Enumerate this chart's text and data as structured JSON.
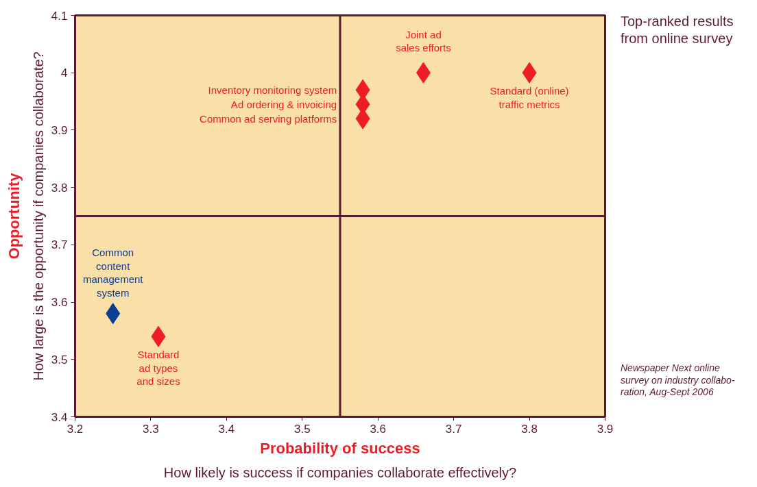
{
  "chart_data": {
    "type": "scatter",
    "title": "Top-ranked results\nfrom online survey",
    "xlabel": "Probability of success",
    "ylabel": "Opportunity",
    "series": [
      {
        "color": "#ee1c25",
        "x": [
          3.58,
          3.58,
          3.58,
          3.66,
          3.8,
          3.31
        ],
        "values": [
          3.97,
          3.945,
          3.92,
          4.0,
          4.0,
          3.54
        ]
      },
      {
        "color": "#0b3c96",
        "x": [
          3.25
        ],
        "values": [
          3.58
        ]
      }
    ],
    "marker": "diamond",
    "xlim": [
      3.2,
      3.9
    ],
    "ylim": [
      3.4,
      4.1
    ],
    "xticks": [
      3.2,
      3.3,
      3.4,
      3.5,
      3.6,
      3.7,
      3.8,
      3.9
    ],
    "yticks": [
      3.4,
      3.5,
      3.6,
      3.7,
      3.8,
      3.9,
      4,
      4.1
    ],
    "ref_lines": [
      {
        "axis": "x",
        "value": 3.55,
        "color": "#5c1a2e"
      },
      {
        "axis": "y",
        "value": 3.75,
        "color": "#5c1a2e"
      }
    ],
    "annotations": [
      {
        "text": "Inventory monitoring system",
        "x": 3.58,
        "y": 3.97
      },
      {
        "text": "Ad ordering & invoicing",
        "x": 3.58,
        "y": 3.945
      },
      {
        "text": "Common ad serving platforms",
        "x": 3.58,
        "y": 3.92
      },
      {
        "text": "Joint ad\nsales efforts",
        "x": 3.66,
        "y": 4.0
      },
      {
        "text": "Standard (online)\ntraffic metrics",
        "x": 3.8,
        "y": 4.0
      },
      {
        "text": "Common\ncontent\nmanagement\nsystem",
        "x": 3.25,
        "y": 3.58
      },
      {
        "text": "Standard\nad types\nand sizes",
        "x": 3.31,
        "y": 3.54
      },
      "How likely is success if companies collaborate effectively?",
      "How large is the opportunity if companies collaborate?",
      "Newspaper Next online\nsurvey on industry collabo-\nration, Aug-Sept 2006"
    ],
    "grid": false
  }
}
